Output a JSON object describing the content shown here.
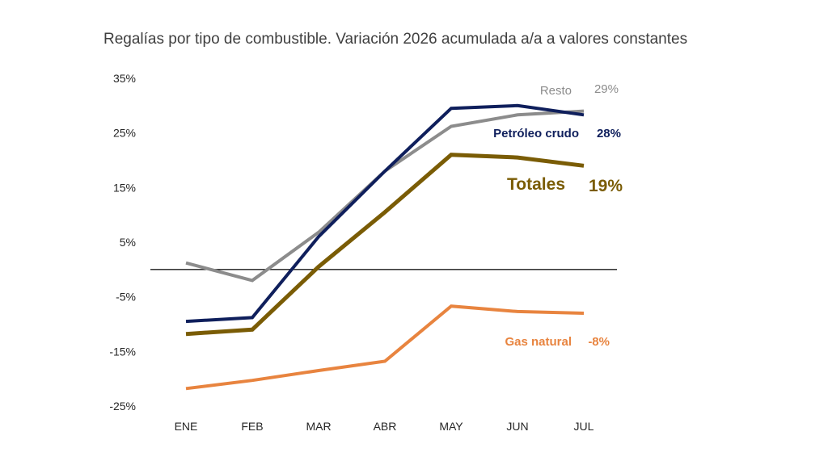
{
  "chart_data": {
    "type": "line",
    "title": "Regalías por tipo de combustible. Variación 2026 acumulada a/a a valores constantes",
    "categories": [
      "ENE",
      "FEB",
      "MAR",
      "ABR",
      "MAY",
      "JUN",
      "JUL"
    ],
    "y_ticks": [
      "35%",
      "25%",
      "15%",
      "5%",
      "-5%",
      "-15%",
      "-25%"
    ],
    "ylim": [
      -25,
      35
    ],
    "zero_line": true,
    "grid": false,
    "series": [
      {
        "name": "Resto",
        "end_label": "29%",
        "color": "#8c8c8c",
        "weight": "normal",
        "values": [
          1.2,
          -2.0,
          6.8,
          18.0,
          26.2,
          28.3,
          29.0
        ]
      },
      {
        "name": "Petróleo crudo",
        "end_label": "28%",
        "color": "#0f1f5c",
        "weight": "bold",
        "values": [
          -9.5,
          -8.8,
          6.0,
          18.0,
          29.5,
          30.0,
          28.3
        ]
      },
      {
        "name": "Totales",
        "end_label": "19%",
        "color": "#7a5c05",
        "weight": "bold",
        "values": [
          -11.8,
          -11.0,
          0.5,
          10.5,
          21.0,
          20.5,
          19.0
        ]
      },
      {
        "name": "Gas natural",
        "end_label": "-8%",
        "color": "#e8843f",
        "weight": "bold",
        "values": [
          -21.8,
          -20.3,
          -18.5,
          -16.8,
          -6.7,
          -7.7,
          -8.0
        ]
      }
    ]
  }
}
